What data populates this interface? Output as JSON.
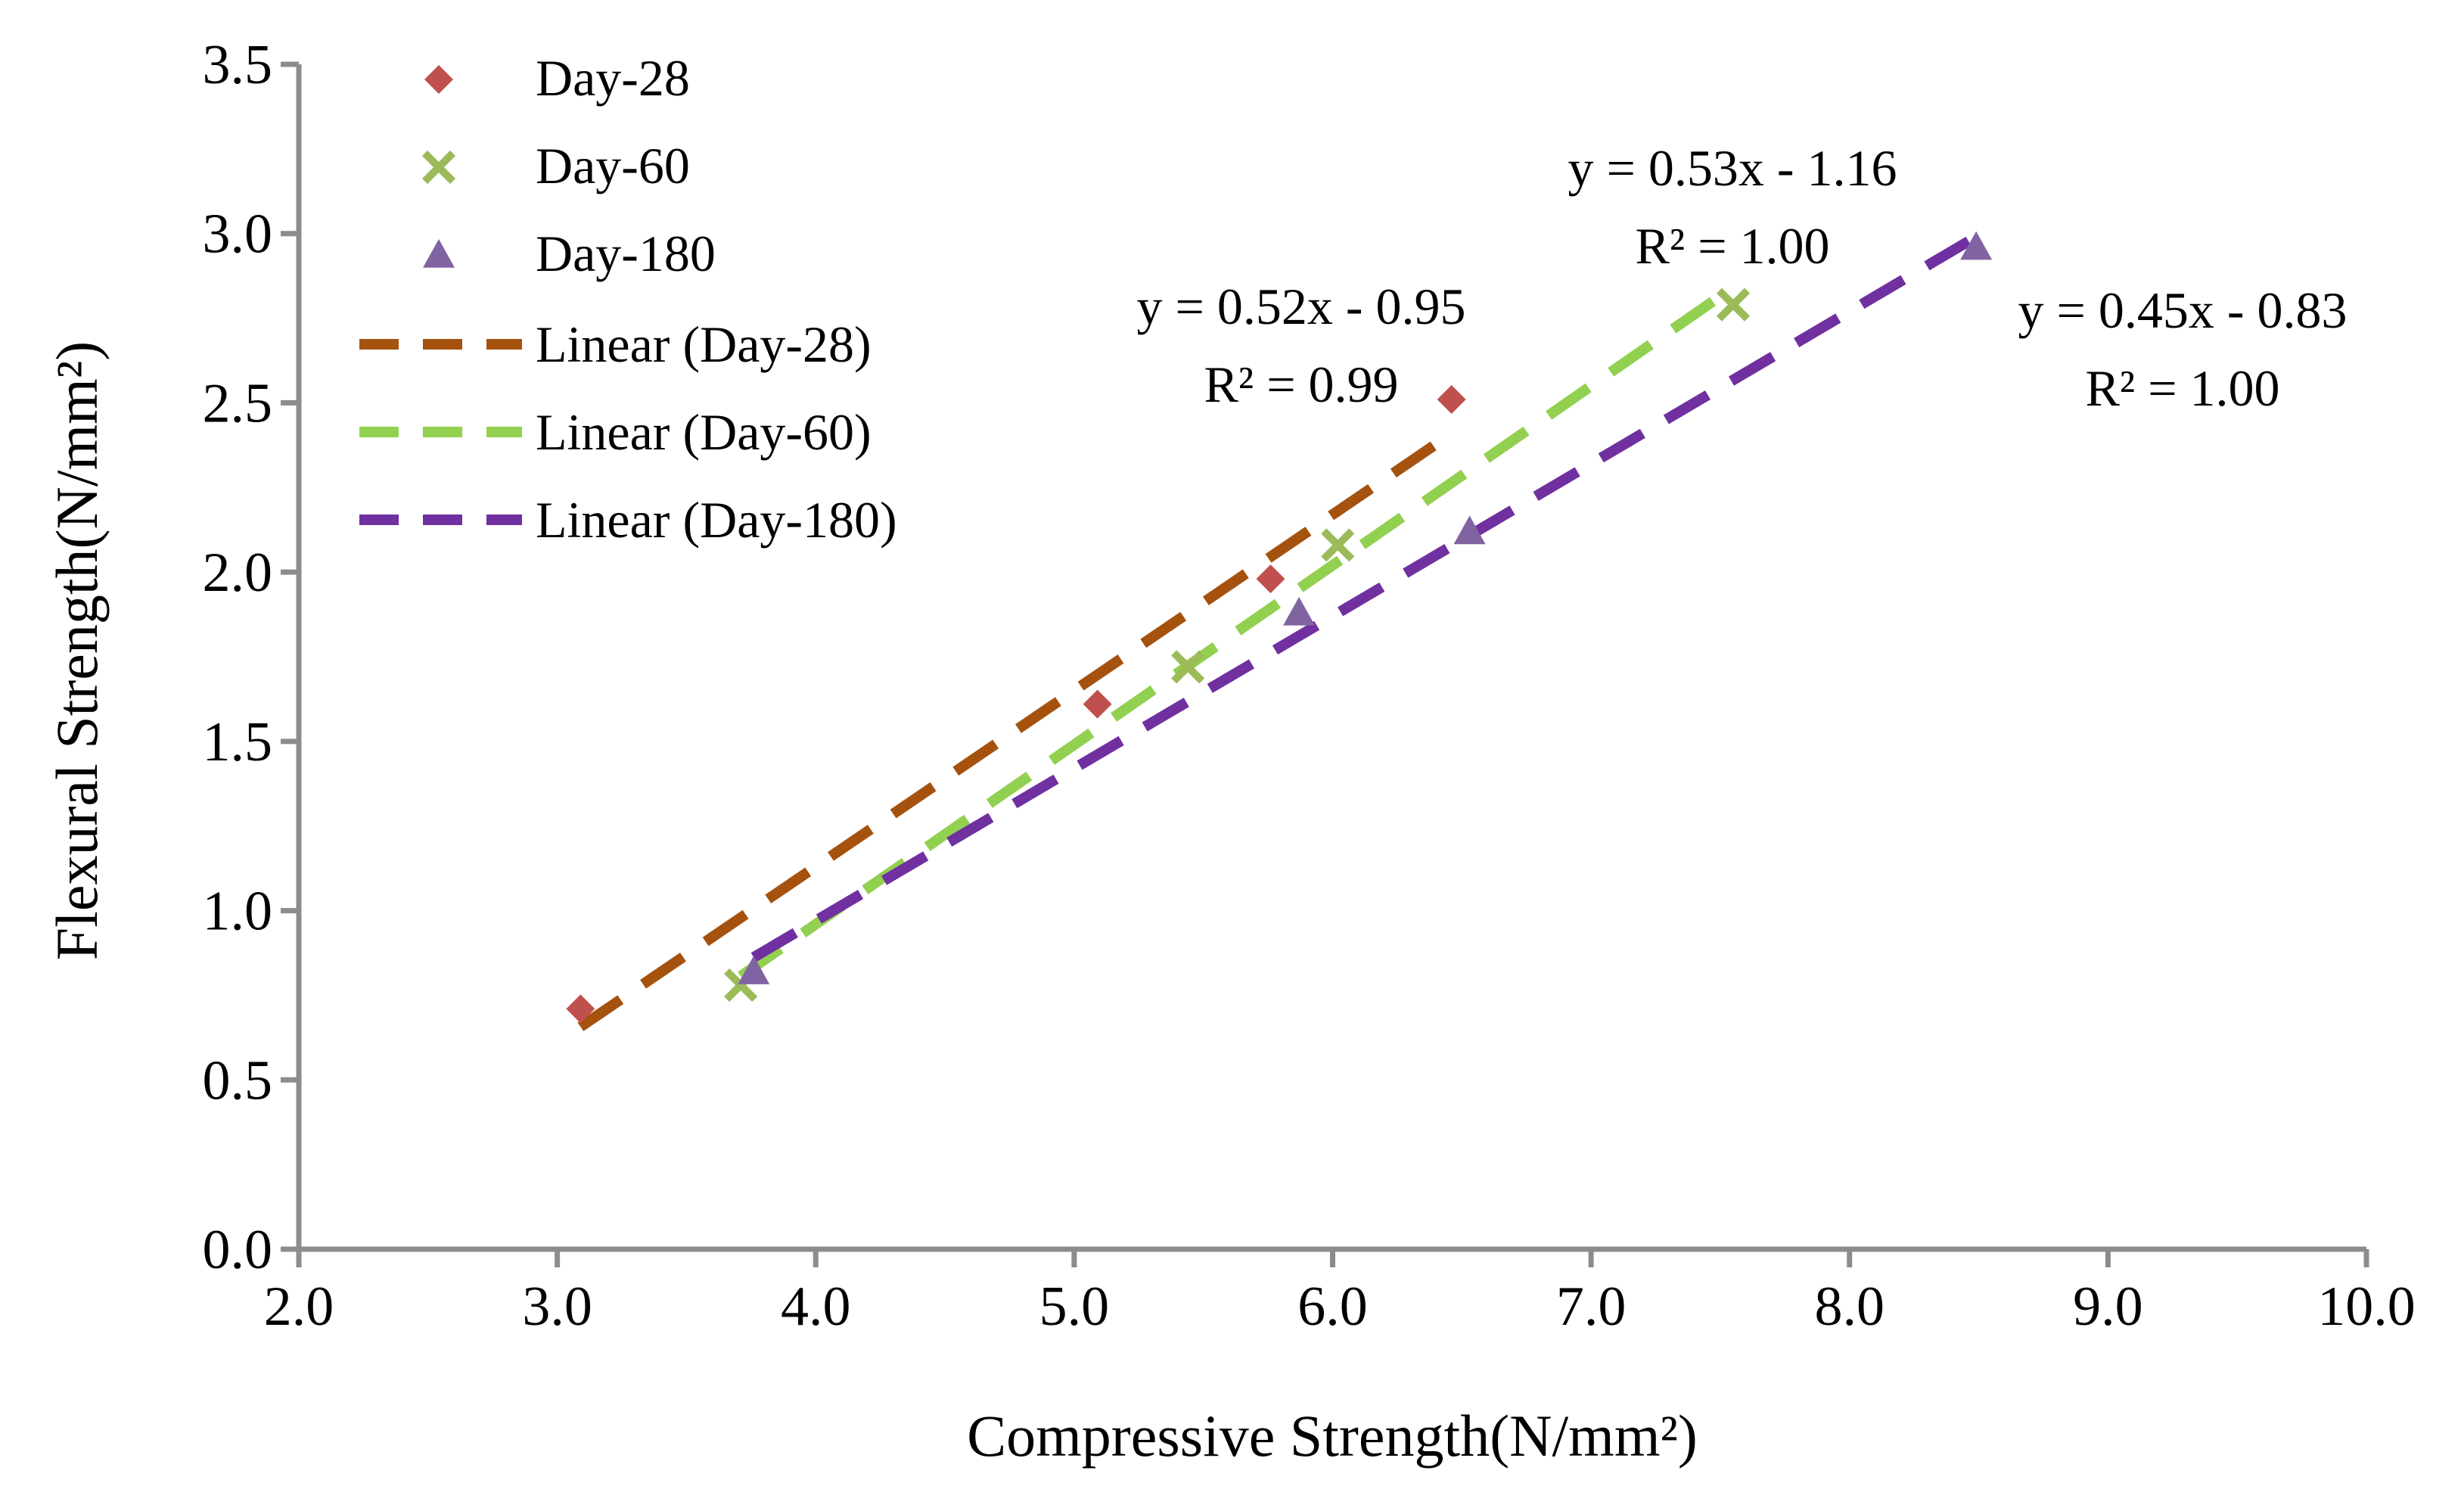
{
  "chart_data": {
    "type": "scatter",
    "title": "",
    "xlabel": "Compressive Strength(N/mm²)",
    "ylabel": "Flexural Strength(N/mm²)",
    "xlim": [
      2.0,
      10.0
    ],
    "ylim": [
      0.0,
      3.5
    ],
    "x_ticks": [
      "2.0",
      "3.0",
      "4.0",
      "5.0",
      "6.0",
      "7.0",
      "8.0",
      "9.0",
      "10.0"
    ],
    "y_ticks": [
      "0.0",
      "0.5",
      "1.0",
      "1.5",
      "2.0",
      "2.5",
      "3.0",
      "3.5"
    ],
    "grid": false,
    "legend_position": "top-left",
    "series": [
      {
        "name": "Day-28",
        "marker": "diamond",
        "color": "#c0504d",
        "x": [
          3.09,
          5.09,
          5.76,
          6.46
        ],
        "y": [
          0.71,
          1.61,
          1.98,
          2.51
        ]
      },
      {
        "name": "Day-60",
        "marker": "x",
        "color": "#9bbb59",
        "x": [
          3.71,
          5.44,
          6.02,
          7.55
        ],
        "y": [
          0.78,
          1.72,
          2.08,
          2.79
        ]
      },
      {
        "name": "Day-180",
        "marker": "triangle",
        "color": "#8064a2",
        "x": [
          3.76,
          5.87,
          6.53,
          8.49
        ],
        "y": [
          0.82,
          1.88,
          2.12,
          2.96
        ]
      }
    ],
    "trendlines": [
      {
        "name": "Linear (Day-28)",
        "color": "#a5520f",
        "slope": 0.52,
        "intercept": -0.95,
        "x_range": [
          3.09,
          6.46
        ],
        "equation": "y = 0.52x  - 0.95",
        "r2": "R² = 0.99"
      },
      {
        "name": "Linear (Day-60)",
        "color": "#92d050",
        "slope": 0.53,
        "intercept": -1.16,
        "x_range": [
          3.71,
          7.55
        ],
        "equation": "y = 0.53x  - 1.16",
        "r2": "R² = 1.00"
      },
      {
        "name": "Linear (Day-180)",
        "color": "#7030a0",
        "slope": 0.45,
        "intercept": -0.83,
        "x_range": [
          3.76,
          8.49
        ],
        "equation": "y = 0.45x  - 0.83",
        "r2": "R² = 1.00"
      }
    ]
  }
}
